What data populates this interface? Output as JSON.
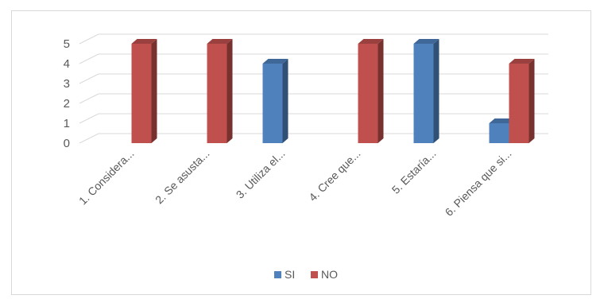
{
  "chart_data": {
    "type": "bar",
    "categories": [
      "1. Considera...",
      "2. Se asusta...",
      "3. Utiliza el...",
      "4. Cree que...",
      "5. Estaría...",
      "6. Piensa que si..."
    ],
    "series": [
      {
        "name": "SI",
        "values": [
          0,
          0,
          4,
          0,
          5,
          1
        ],
        "color": "#4f81bd"
      },
      {
        "name": "NO",
        "values": [
          5,
          5,
          0,
          5,
          0,
          4
        ],
        "color": "#c0504d"
      }
    ],
    "ylim": [
      0,
      5
    ],
    "yticks": [
      "0",
      "1",
      "2",
      "3",
      "4",
      "5"
    ],
    "grid": true,
    "legend": "bottom",
    "style": "3d-column"
  }
}
